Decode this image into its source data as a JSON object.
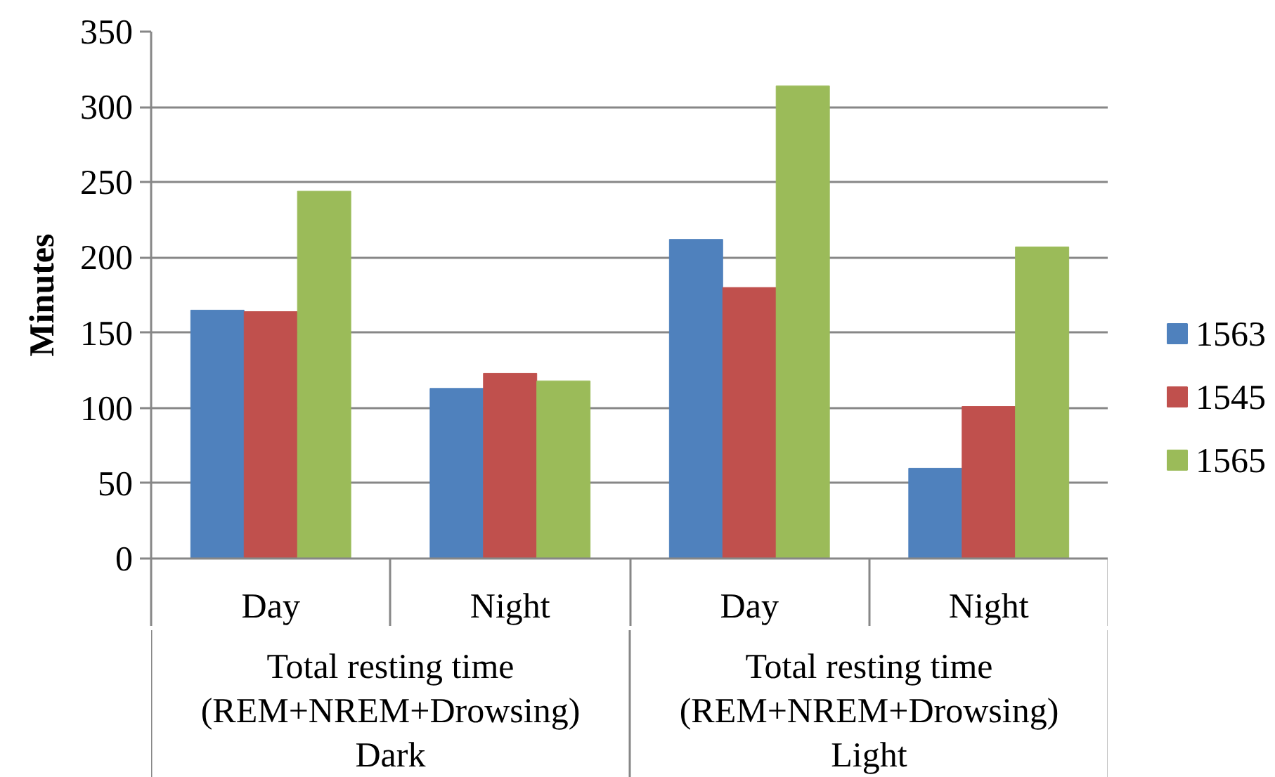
{
  "chart_data": {
    "type": "bar",
    "ylabel": "Minutes",
    "categories": [
      "Day",
      "Night",
      "Day",
      "Night"
    ],
    "annotations": [
      "Total resting time\n(REM+NREM+Drowsing)\nDark",
      "Total resting time\n(REM+NREM+Drowsing)\nLight"
    ],
    "series": [
      {
        "name": "1563",
        "color": "#4f81bd",
        "values": [
          165,
          113,
          212,
          60
        ]
      },
      {
        "name": "1545",
        "color": "#c0504d",
        "values": [
          164,
          123,
          180,
          101
        ]
      },
      {
        "name": "1565",
        "color": "#9bbb59",
        "values": [
          244,
          118,
          314,
          207
        ]
      }
    ],
    "ylim": [
      0,
      350
    ],
    "yticks": [
      0,
      50,
      100,
      150,
      200,
      250,
      300,
      350
    ],
    "grid": "y",
    "legend": "right"
  }
}
